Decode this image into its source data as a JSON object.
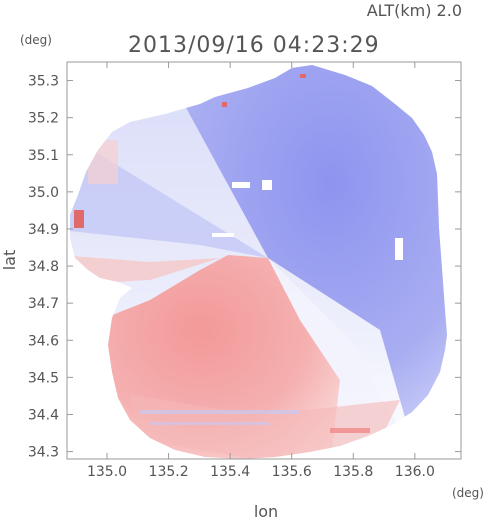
{
  "header": {
    "alt_label": "ALT(km) 2.0",
    "timestamp": "2013/09/16 04:23:29"
  },
  "chart_data": {
    "type": "heatmap",
    "title": "2013/09/16 04:23:29",
    "subtitle": "ALT(km) 2.0",
    "xlabel": "lon",
    "ylabel": "lat",
    "x_unit": "(deg)",
    "y_unit": "(deg)",
    "xlim": [
      134.87,
      136.15
    ],
    "ylim": [
      34.28,
      35.35
    ],
    "x_ticks": [
      135.0,
      135.2,
      135.4,
      135.6,
      135.8,
      136.0
    ],
    "x_tick_labels": [
      "135.0",
      "135.2",
      "135.4",
      "135.6",
      "135.8",
      "136.0"
    ],
    "y_ticks": [
      34.3,
      34.4,
      34.5,
      34.6,
      34.7,
      34.8,
      34.9,
      35.0,
      35.1,
      35.2,
      35.3
    ],
    "y_tick_labels": [
      "34.3",
      "34.4",
      "34.5",
      "34.6",
      "34.7",
      "34.8",
      "34.9",
      "35.0",
      "35.1",
      "35.2",
      "35.3"
    ],
    "radar_center": {
      "lon": 135.53,
      "lat": 34.82
    },
    "colors": {
      "negative": "#7f87f0",
      "zero": "#ffffff",
      "positive": "#f29393",
      "axis": "#9a9a9a"
    }
  }
}
